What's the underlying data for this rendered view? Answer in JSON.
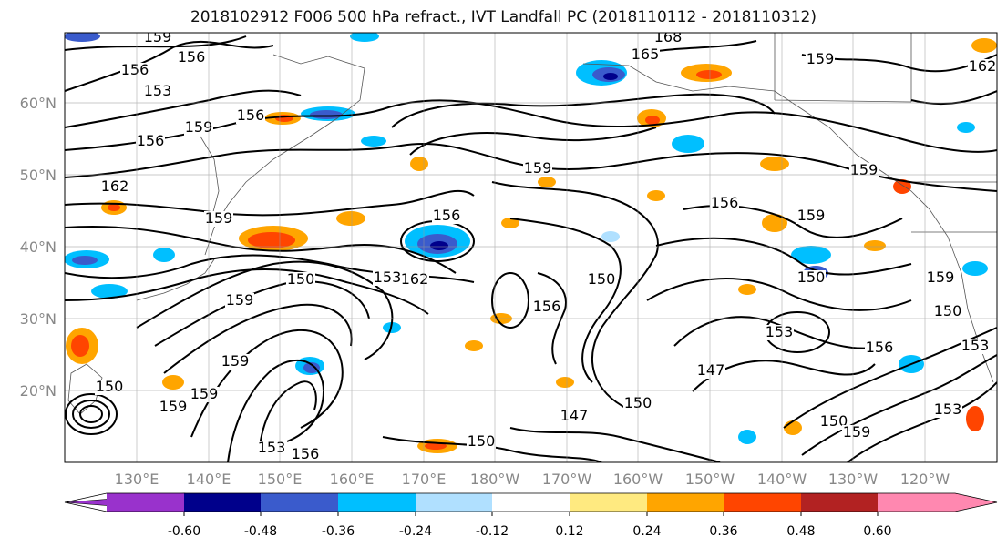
{
  "title": "2018102912 F006 500 hPa refract., IVT Landfall PC (2018110112 - 2018110312)",
  "lat_labels": [
    "60°N",
    "50°N",
    "40°N",
    "30°N",
    "20°N"
  ],
  "lon_labels": [
    "130°E",
    "140°E",
    "150°E",
    "160°E",
    "170°E",
    "180°W",
    "170°W",
    "160°W",
    "150°W",
    "140°W",
    "130°W",
    "120°W"
  ],
  "colorbar": {
    "colors": [
      "#9932cc",
      "#00008b",
      "#3a5bcc",
      "#00bfff",
      "#b0e0ff",
      "#ffffff",
      "#ffea80",
      "#ffa500",
      "#ff4500",
      "#b22222",
      "#ff88b0"
    ],
    "tick_labels": [
      "-0.60",
      "-0.48",
      "-0.36",
      "-0.24",
      "-0.12",
      "0.12",
      "0.24",
      "0.36",
      "0.48",
      "0.60"
    ]
  },
  "contour_labels": [
    "159",
    "156",
    "156",
    "153",
    "156",
    "156",
    "162",
    "159",
    "168",
    "165",
    "159",
    "162",
    "159",
    "159",
    "156",
    "156",
    "159",
    "159",
    "150",
    "162",
    "153",
    "150",
    "156",
    "159",
    "150",
    "153",
    "156",
    "159",
    "147",
    "150",
    "150",
    "153",
    "159",
    "159",
    "153",
    "156",
    "150",
    "147",
    "153",
    "150",
    "159",
    "159",
    "150"
  ],
  "fill_colors": {
    "neg_strong": "#00008b",
    "neg_mid": "#3a5bcc",
    "neg": "#00bfff",
    "neg_light": "#b0e0ff",
    "pos_light": "#ffea80",
    "pos": "#ffa500",
    "pos_mid": "#ff4500",
    "pos_strong": "#b22222"
  }
}
